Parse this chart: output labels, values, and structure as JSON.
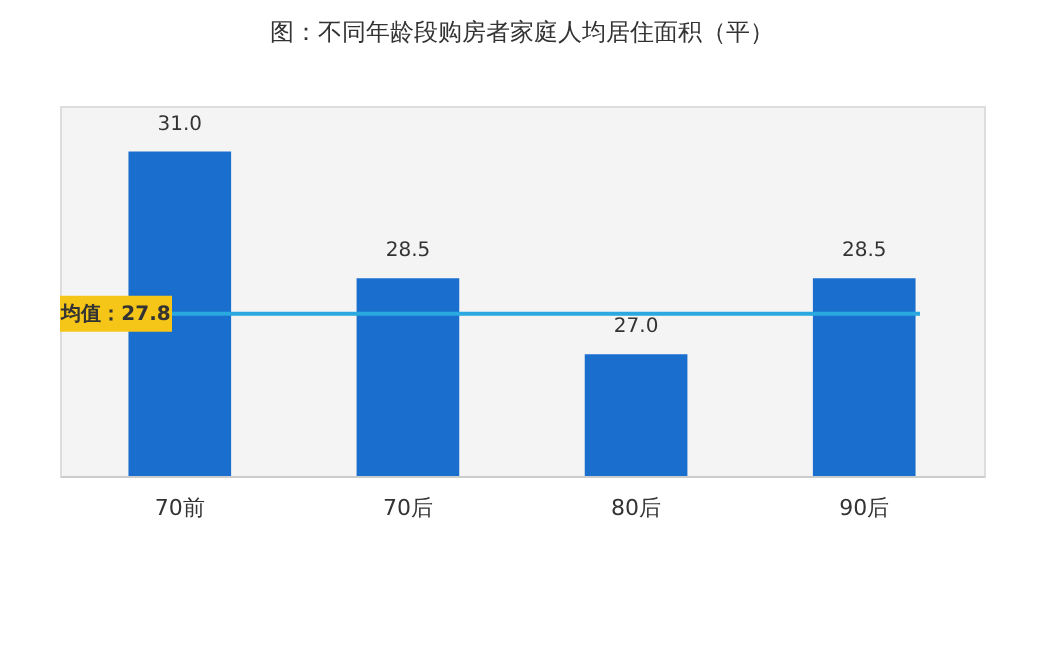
{
  "chart_data": {
    "type": "bar",
    "title": "图：不同年龄段购房者家庭人均居住面积（平）",
    "categories": [
      "70前",
      "70后",
      "80后",
      "90后"
    ],
    "values": [
      31.0,
      28.5,
      27.0,
      28.5
    ],
    "value_labels": [
      "31.0",
      "28.5",
      "27.0",
      "28.5"
    ],
    "color": "#1a6fce",
    "ylim": [
      24.6,
      31.9
    ],
    "grid": false,
    "tick_labels": "x",
    "ref_lines": [
      {
        "axis": "y",
        "value": 27.8,
        "label": "均值：27.8",
        "color": "#29a9e0"
      }
    ]
  }
}
